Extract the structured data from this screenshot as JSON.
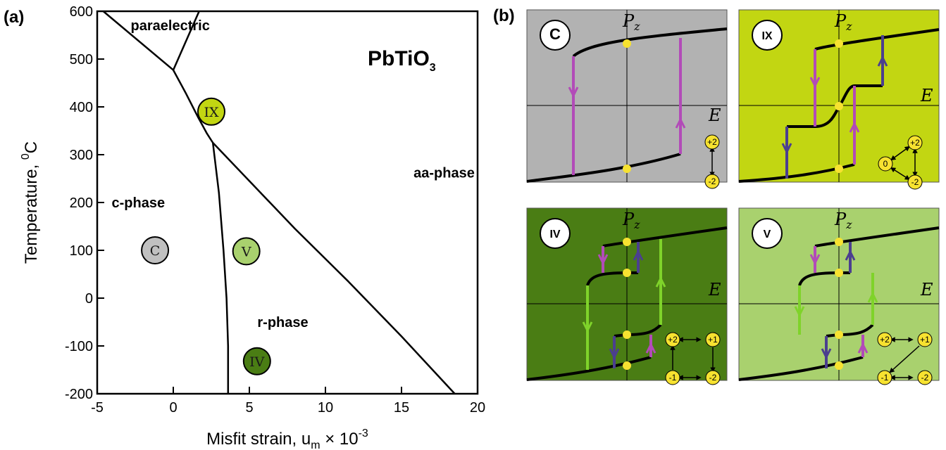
{
  "panels": {
    "a_tag": "(a)",
    "b_tag": "(b)"
  },
  "chart_data": [
    {
      "type": "line",
      "subtype": "phase-diagram",
      "title": "PbTiO3",
      "title_main": "PbTiO",
      "title_sub": "3",
      "xlabel_main": "Misfit strain, u",
      "xlabel_sub": "m",
      "xlabel_tail": " × 10",
      "xlabel_sup": "-3",
      "ylabel_main": "Temperature, ",
      "ylabel_sup": "0",
      "ylabel_tail": "C",
      "xlim": [
        -5,
        20
      ],
      "ylim": [
        -200,
        600
      ],
      "xticks": [
        -5,
        0,
        5,
        10,
        15,
        20
      ],
      "yticks": [
        -200,
        -100,
        0,
        100,
        200,
        300,
        400,
        500,
        600
      ],
      "boundaries": [
        {
          "points": [
            [
              -4.6,
              600
            ],
            [
              0,
              477
            ]
          ]
        },
        {
          "points": [
            [
              0,
              477
            ],
            [
              1.7,
              600
            ]
          ]
        },
        {
          "points": [
            [
              0,
              477
            ],
            [
              0.8,
              430
            ],
            [
              1.6,
              380
            ],
            [
              2.2,
              345
            ],
            [
              2.6,
              325
            ]
          ]
        },
        {
          "points": [
            [
              2.6,
              325
            ],
            [
              3.0,
              220
            ],
            [
              3.3,
              100
            ],
            [
              3.5,
              0
            ],
            [
              3.6,
              -100
            ],
            [
              3.6,
              -200
            ]
          ]
        },
        {
          "points": [
            [
              2.6,
              325
            ],
            [
              5,
              245
            ],
            [
              8,
              145
            ],
            [
              11.5,
              35
            ],
            [
              15,
              -80
            ],
            [
              18.5,
              -200
            ]
          ]
        }
      ],
      "regions": [
        {
          "label": "paraelectric",
          "x": -0.2,
          "y": 560
        },
        {
          "label": "c-phase",
          "x": -2.3,
          "y": 190
        },
        {
          "label": "aa-phase",
          "x": 17.8,
          "y": 252
        },
        {
          "label": "r-phase",
          "x": 7.2,
          "y": -60
        }
      ],
      "markers": [
        {
          "label": "C",
          "x": -1.2,
          "y": 100,
          "color": "#c0c0c0"
        },
        {
          "label": "IX",
          "x": 2.5,
          "y": 390,
          "color": "#c2d612"
        },
        {
          "label": "V",
          "x": 4.8,
          "y": 98,
          "color": "#a9d16e"
        },
        {
          "label": "IV",
          "x": 5.5,
          "y": -132,
          "color": "#4a7d14"
        }
      ]
    },
    {
      "type": "line",
      "subtype": "hysteresis-loops",
      "xlabel": "E",
      "ylabel_main": "P",
      "ylabel_sub": "z",
      "loops": [
        {
          "tag": "C",
          "bg": "#b2b2b2",
          "states": [
            "+2",
            "-2"
          ]
        },
        {
          "tag": "IX",
          "bg": "#c2d612",
          "states": [
            "+2",
            "0",
            "-2"
          ]
        },
        {
          "tag": "IV",
          "bg": "#4a7d14",
          "states": [
            "+2",
            "+1",
            "-1",
            "-2"
          ]
        },
        {
          "tag": "V",
          "bg": "#a9d16e",
          "states": [
            "+2",
            "+1",
            "-1",
            "-2"
          ]
        }
      ]
    }
  ],
  "colors": {
    "magenta": "#b24bb8",
    "navy": "#4b3f8f",
    "green": "#7fd32a",
    "yellow": "#f7e230"
  }
}
